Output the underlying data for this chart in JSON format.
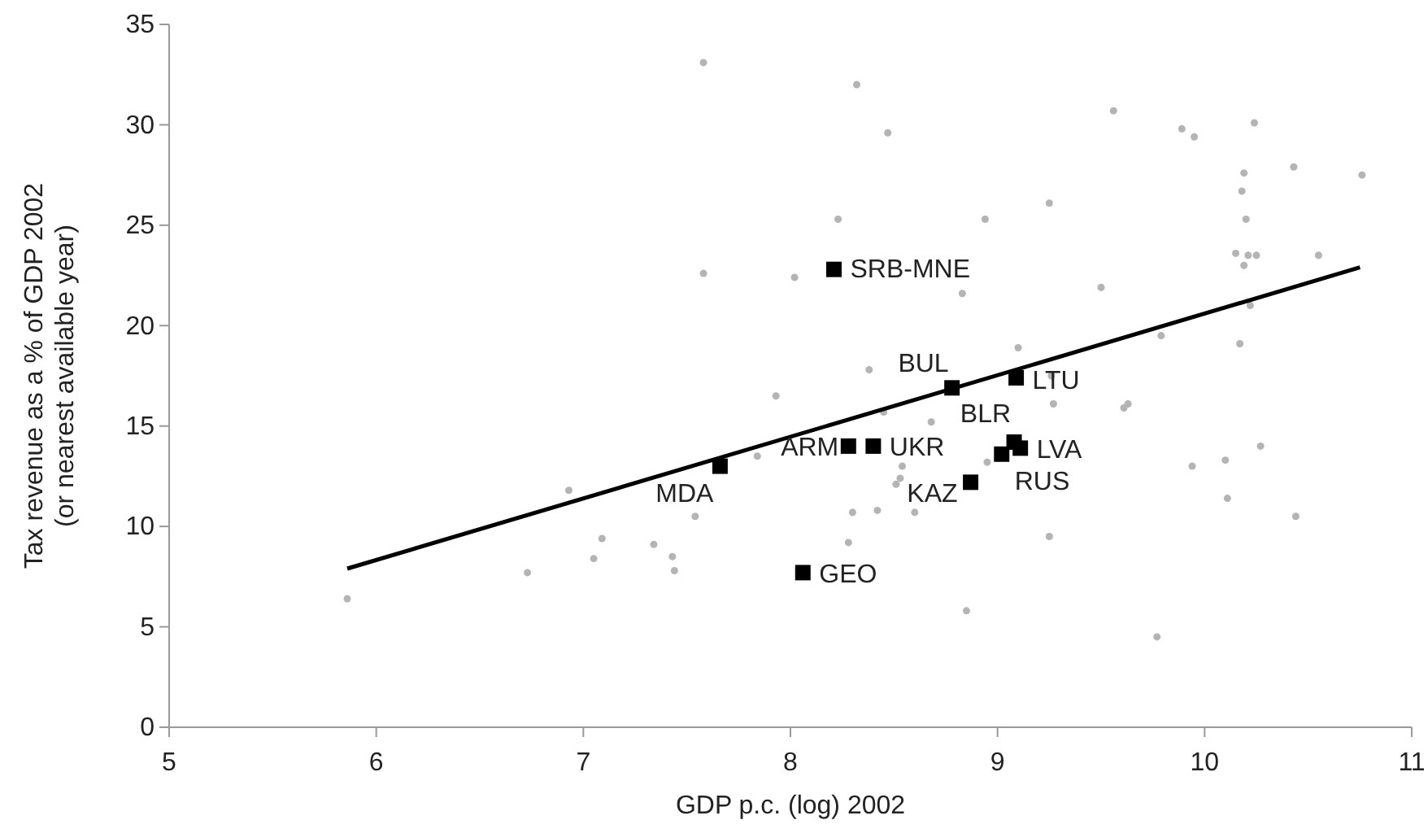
{
  "chart_data": {
    "type": "scatter",
    "xlabel": "GDP p.c. (log) 2002",
    "ylabel": "Tax revenue as a % of GDP 2002 (or nearest available year)",
    "xlim": [
      5,
      11
    ],
    "xticks": [
      5,
      6,
      7,
      8,
      9,
      10,
      11
    ],
    "ylim": [
      0,
      35
    ],
    "yticks": [
      0,
      5,
      10,
      15,
      20,
      25,
      30,
      35
    ],
    "series": [
      {
        "marker": "circle",
        "color": "#b4b4b4",
        "x": [
          5.86,
          6.73,
          6.93,
          7.09,
          7.05,
          7.34,
          7.43,
          7.44,
          7.54,
          7.84,
          7.93,
          7.58,
          8.32,
          8.47,
          7.58,
          8.02,
          8.23,
          9.56,
          9.89,
          9.95,
          10.24,
          10.19,
          10.43,
          10.76,
          10.18,
          10.2,
          8.94,
          9.25,
          10.15,
          10.21,
          10.25,
          10.19,
          10.55,
          8.83,
          9.5,
          10.22,
          9.79,
          10.17,
          9.1,
          8.38,
          9.26,
          9.27,
          9.63,
          9.61,
          8.68,
          8.45,
          8.95,
          8.54,
          8.53,
          8.51,
          8.3,
          8.42,
          8.6,
          8.28,
          9.25,
          8.85,
          9.77,
          9.94,
          10.1,
          10.27,
          10.11,
          10.44
        ],
        "values": [
          6.4,
          7.7,
          11.8,
          9.4,
          8.4,
          9.1,
          8.5,
          7.8,
          10.5,
          13.5,
          16.5,
          33.1,
          32.0,
          29.6,
          22.6,
          22.4,
          25.3,
          30.7,
          29.8,
          29.4,
          30.1,
          27.6,
          27.9,
          27.5,
          26.7,
          25.3,
          25.3,
          26.1,
          23.6,
          23.5,
          23.5,
          23.0,
          23.5,
          21.6,
          21.9,
          21.0,
          19.5,
          19.1,
          18.9,
          17.8,
          17.5,
          16.1,
          16.1,
          15.9,
          15.2,
          15.7,
          13.2,
          13.0,
          12.4,
          12.1,
          10.7,
          10.8,
          10.7,
          9.2,
          9.5,
          5.8,
          4.5,
          13.0,
          13.3,
          14.0,
          11.4,
          10.5
        ]
      },
      {
        "marker": "square",
        "color": "#000000",
        "x": [
          8.21,
          8.78,
          9.09,
          9.08,
          9.11,
          9.02,
          8.87,
          8.28,
          8.4,
          8.06,
          7.66
        ],
        "values": [
          22.8,
          16.9,
          17.4,
          14.2,
          13.9,
          13.6,
          12.2,
          14.0,
          14.0,
          7.7,
          13.0
        ]
      },
      {
        "type": "line",
        "color": "#000000",
        "x": [
          5.86,
          10.75
        ],
        "values": [
          7.9,
          22.9
        ]
      }
    ],
    "annotations": [
      {
        "text": "SRB-MNE",
        "x": 8.21,
        "y": 22.8
      },
      {
        "text": "BUL",
        "x": 8.78,
        "y": 16.9
      },
      {
        "text": "LTU",
        "x": 9.09,
        "y": 17.4
      },
      {
        "text": "BLR",
        "x": 9.08,
        "y": 14.2
      },
      {
        "text": "LVA",
        "x": 9.11,
        "y": 13.9
      },
      {
        "text": "RUS",
        "x": 9.02,
        "y": 13.6
      },
      {
        "text": "KAZ",
        "x": 8.87,
        "y": 12.2
      },
      {
        "text": "ARM",
        "x": 8.28,
        "y": 14.0
      },
      {
        "text": "UKR",
        "x": 8.4,
        "y": 14.0
      },
      {
        "text": "GEO",
        "x": 8.06,
        "y": 7.7
      },
      {
        "text": "MDA",
        "x": 7.66,
        "y": 13.0
      }
    ]
  }
}
